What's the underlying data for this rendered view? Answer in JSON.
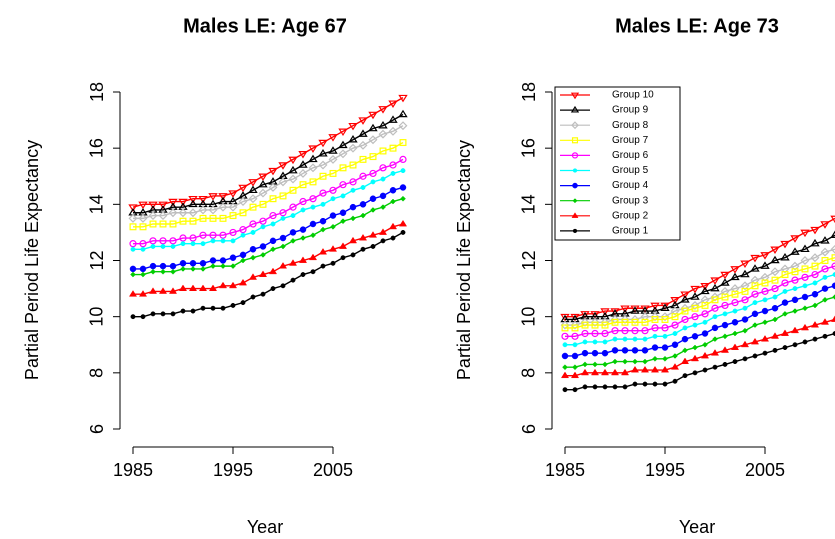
{
  "chart_data": [
    {
      "type": "line",
      "title": "Males LE: Age 67",
      "xlabel": "Year",
      "ylabel": "Partial Period Life Expectancy",
      "x": [
        1985,
        1986,
        1987,
        1988,
        1989,
        1990,
        1991,
        1992,
        1993,
        1994,
        1995,
        1996,
        1997,
        1998,
        1999,
        2000,
        2001,
        2002,
        2003,
        2004,
        2005,
        2006,
        2007,
        2008,
        2009,
        2010,
        2011,
        2012
      ],
      "xlim": [
        1984,
        2013
      ],
      "xticks": [
        1985,
        1995,
        2005
      ],
      "ylim": [
        6,
        18
      ],
      "yticks": [
        6,
        8,
        10,
        12,
        14,
        16,
        18
      ],
      "legend": false,
      "series": [
        {
          "color": "#ff0000",
          "marker": "tri-down-open",
          "values": [
            13.9,
            14.0,
            14.0,
            14.0,
            14.1,
            14.1,
            14.2,
            14.2,
            14.3,
            14.3,
            14.4,
            14.6,
            14.8,
            15.0,
            15.2,
            15.4,
            15.6,
            15.8,
            16.0,
            16.2,
            16.4,
            16.6,
            16.8,
            17.0,
            17.2,
            17.4,
            17.6,
            17.8
          ]
        },
        {
          "color": "#000000",
          "marker": "tri-up-open",
          "values": [
            13.7,
            13.7,
            13.8,
            13.8,
            13.9,
            13.9,
            14.0,
            14.0,
            14.0,
            14.1,
            14.1,
            14.3,
            14.5,
            14.7,
            14.8,
            15.0,
            15.2,
            15.4,
            15.6,
            15.8,
            15.9,
            16.1,
            16.3,
            16.5,
            16.7,
            16.8,
            17.0,
            17.2
          ]
        },
        {
          "color": "#bebebe",
          "marker": "diamond-open",
          "values": [
            13.5,
            13.5,
            13.6,
            13.6,
            13.7,
            13.7,
            13.7,
            13.8,
            13.8,
            13.9,
            13.9,
            14.1,
            14.2,
            14.4,
            14.6,
            14.8,
            14.9,
            15.1,
            15.3,
            15.4,
            15.6,
            15.8,
            16.0,
            16.1,
            16.3,
            16.5,
            16.6,
            16.8
          ]
        },
        {
          "color": "#ffff00",
          "marker": "square-open",
          "values": [
            13.2,
            13.2,
            13.3,
            13.3,
            13.3,
            13.4,
            13.4,
            13.5,
            13.5,
            13.5,
            13.6,
            13.7,
            13.9,
            14.0,
            14.2,
            14.3,
            14.5,
            14.7,
            14.8,
            15.0,
            15.1,
            15.3,
            15.4,
            15.6,
            15.7,
            15.9,
            16.0,
            16.2
          ]
        },
        {
          "color": "#ff00ff",
          "marker": "circle-open",
          "values": [
            12.6,
            12.6,
            12.7,
            12.7,
            12.7,
            12.8,
            12.8,
            12.9,
            12.9,
            12.9,
            13.0,
            13.1,
            13.3,
            13.4,
            13.6,
            13.7,
            13.9,
            14.1,
            14.2,
            14.4,
            14.5,
            14.7,
            14.8,
            15.0,
            15.1,
            15.3,
            15.4,
            15.6
          ]
        },
        {
          "color": "#00ffff",
          "marker": "dot",
          "values": [
            12.4,
            12.4,
            12.5,
            12.5,
            12.5,
            12.6,
            12.6,
            12.6,
            12.7,
            12.7,
            12.7,
            12.9,
            13.0,
            13.2,
            13.3,
            13.5,
            13.6,
            13.8,
            13.9,
            14.0,
            14.2,
            14.3,
            14.5,
            14.6,
            14.8,
            14.9,
            15.1,
            15.2
          ]
        },
        {
          "color": "#0000ff",
          "marker": "circle",
          "values": [
            11.7,
            11.7,
            11.8,
            11.8,
            11.8,
            11.9,
            11.9,
            11.9,
            12.0,
            12.0,
            12.1,
            12.2,
            12.4,
            12.5,
            12.7,
            12.8,
            13.0,
            13.1,
            13.3,
            13.4,
            13.6,
            13.7,
            13.9,
            14.0,
            14.2,
            14.3,
            14.5,
            14.6
          ]
        },
        {
          "color": "#00cd00",
          "marker": "diamond",
          "values": [
            11.5,
            11.5,
            11.6,
            11.6,
            11.6,
            11.7,
            11.7,
            11.7,
            11.8,
            11.8,
            11.8,
            12.0,
            12.1,
            12.2,
            12.4,
            12.5,
            12.7,
            12.8,
            12.9,
            13.1,
            13.2,
            13.4,
            13.5,
            13.6,
            13.8,
            13.9,
            14.1,
            14.2
          ]
        },
        {
          "color": "#ff0000",
          "marker": "tri-up",
          "values": [
            10.8,
            10.8,
            10.9,
            10.9,
            10.9,
            11.0,
            11.0,
            11.0,
            11.0,
            11.1,
            11.1,
            11.2,
            11.4,
            11.5,
            11.6,
            11.8,
            11.9,
            12.0,
            12.1,
            12.3,
            12.4,
            12.5,
            12.7,
            12.8,
            12.9,
            13.0,
            13.2,
            13.3
          ]
        },
        {
          "color": "#000000",
          "marker": "dot",
          "values": [
            10.0,
            10.0,
            10.1,
            10.1,
            10.1,
            10.2,
            10.2,
            10.3,
            10.3,
            10.3,
            10.4,
            10.5,
            10.7,
            10.8,
            11.0,
            11.1,
            11.3,
            11.5,
            11.6,
            11.8,
            11.9,
            12.1,
            12.2,
            12.4,
            12.5,
            12.7,
            12.8,
            13.0
          ]
        }
      ]
    },
    {
      "type": "line",
      "title": "Males LE: Age 73",
      "xlabel": "Year",
      "ylabel": "Partial Period Life Expectancy",
      "x": [
        1985,
        1986,
        1987,
        1988,
        1989,
        1990,
        1991,
        1992,
        1993,
        1994,
        1995,
        1996,
        1997,
        1998,
        1999,
        2000,
        2001,
        2002,
        2003,
        2004,
        2005,
        2006,
        2007,
        2008,
        2009,
        2010,
        2011,
        2012
      ],
      "xlim": [
        1984,
        2013
      ],
      "xticks": [
        1985,
        1995,
        2005
      ],
      "ylim": [
        6,
        18
      ],
      "yticks": [
        6,
        8,
        10,
        12,
        14,
        16,
        18
      ],
      "legend": "topleft",
      "series": [
        {
          "name": "Group 10",
          "color": "#ff0000",
          "marker": "tri-down-open",
          "values": [
            10.0,
            10.0,
            10.1,
            10.1,
            10.2,
            10.2,
            10.3,
            10.3,
            10.3,
            10.4,
            10.4,
            10.6,
            10.8,
            11.0,
            11.1,
            11.3,
            11.5,
            11.7,
            11.9,
            12.1,
            12.2,
            12.4,
            12.6,
            12.8,
            13.0,
            13.1,
            13.3,
            13.5
          ]
        },
        {
          "name": "Group 9",
          "color": "#000000",
          "marker": "tri-up-open",
          "values": [
            9.9,
            9.9,
            10.0,
            10.0,
            10.0,
            10.1,
            10.1,
            10.2,
            10.2,
            10.2,
            10.3,
            10.4,
            10.6,
            10.7,
            10.9,
            11.0,
            11.2,
            11.4,
            11.5,
            11.7,
            11.8,
            12.0,
            12.1,
            12.3,
            12.4,
            12.6,
            12.7,
            12.9
          ]
        },
        {
          "name": "Group 8",
          "color": "#bebebe",
          "marker": "diamond-open",
          "values": [
            9.7,
            9.7,
            9.8,
            9.8,
            9.8,
            9.9,
            9.9,
            9.9,
            10.0,
            10.0,
            10.0,
            10.2,
            10.3,
            10.4,
            10.6,
            10.7,
            10.9,
            11.0,
            11.1,
            11.3,
            11.4,
            11.6,
            11.7,
            11.8,
            12.0,
            12.1,
            12.3,
            12.4
          ]
        },
        {
          "name": "Group 7",
          "color": "#ffff00",
          "marker": "square-open",
          "values": [
            9.6,
            9.6,
            9.7,
            9.7,
            9.7,
            9.8,
            9.8,
            9.8,
            9.8,
            9.9,
            9.9,
            10.0,
            10.2,
            10.3,
            10.4,
            10.6,
            10.7,
            10.8,
            10.9,
            11.1,
            11.2,
            11.3,
            11.5,
            11.6,
            11.7,
            11.8,
            12.0,
            12.1
          ]
        },
        {
          "name": "Group 6",
          "color": "#ff00ff",
          "marker": "circle-open",
          "values": [
            9.3,
            9.3,
            9.4,
            9.4,
            9.4,
            9.5,
            9.5,
            9.5,
            9.5,
            9.6,
            9.6,
            9.7,
            9.9,
            10.0,
            10.1,
            10.3,
            10.4,
            10.5,
            10.6,
            10.8,
            10.9,
            11.0,
            11.2,
            11.3,
            11.4,
            11.5,
            11.7,
            11.8
          ]
        },
        {
          "name": "Group 5",
          "color": "#00ffff",
          "marker": "dot",
          "values": [
            9.0,
            9.0,
            9.1,
            9.1,
            9.1,
            9.2,
            9.2,
            9.2,
            9.2,
            9.3,
            9.3,
            9.4,
            9.6,
            9.7,
            9.8,
            10.0,
            10.1,
            10.2,
            10.3,
            10.5,
            10.6,
            10.7,
            10.9,
            11.0,
            11.1,
            11.2,
            11.4,
            11.5
          ]
        },
        {
          "name": "Group 4",
          "color": "#0000ff",
          "marker": "circle",
          "values": [
            8.6,
            8.6,
            8.7,
            8.7,
            8.7,
            8.8,
            8.8,
            8.8,
            8.8,
            8.9,
            8.9,
            9.0,
            9.2,
            9.3,
            9.4,
            9.6,
            9.7,
            9.8,
            9.9,
            10.1,
            10.2,
            10.3,
            10.5,
            10.6,
            10.7,
            10.8,
            11.0,
            11.1
          ]
        },
        {
          "name": "Group 3",
          "color": "#00cd00",
          "marker": "diamond",
          "values": [
            8.2,
            8.2,
            8.3,
            8.3,
            8.3,
            8.4,
            8.4,
            8.4,
            8.4,
            8.5,
            8.5,
            8.6,
            8.8,
            8.9,
            9.0,
            9.2,
            9.3,
            9.4,
            9.5,
            9.7,
            9.8,
            9.9,
            10.1,
            10.2,
            10.3,
            10.4,
            10.6,
            10.7
          ]
        },
        {
          "name": "Group 2",
          "color": "#ff0000",
          "marker": "tri-up",
          "values": [
            7.9,
            7.9,
            8.0,
            8.0,
            8.0,
            8.0,
            8.0,
            8.1,
            8.1,
            8.1,
            8.1,
            8.2,
            8.4,
            8.5,
            8.6,
            8.7,
            8.8,
            8.9,
            9.0,
            9.1,
            9.2,
            9.3,
            9.4,
            9.5,
            9.6,
            9.7,
            9.8,
            9.9
          ]
        },
        {
          "name": "Group 1",
          "color": "#000000",
          "marker": "dot",
          "values": [
            7.4,
            7.4,
            7.5,
            7.5,
            7.5,
            7.5,
            7.5,
            7.6,
            7.6,
            7.6,
            7.6,
            7.7,
            7.9,
            8.0,
            8.1,
            8.2,
            8.3,
            8.4,
            8.5,
            8.6,
            8.7,
            8.8,
            8.9,
            9.0,
            9.1,
            9.2,
            9.3,
            9.4
          ]
        }
      ]
    }
  ]
}
